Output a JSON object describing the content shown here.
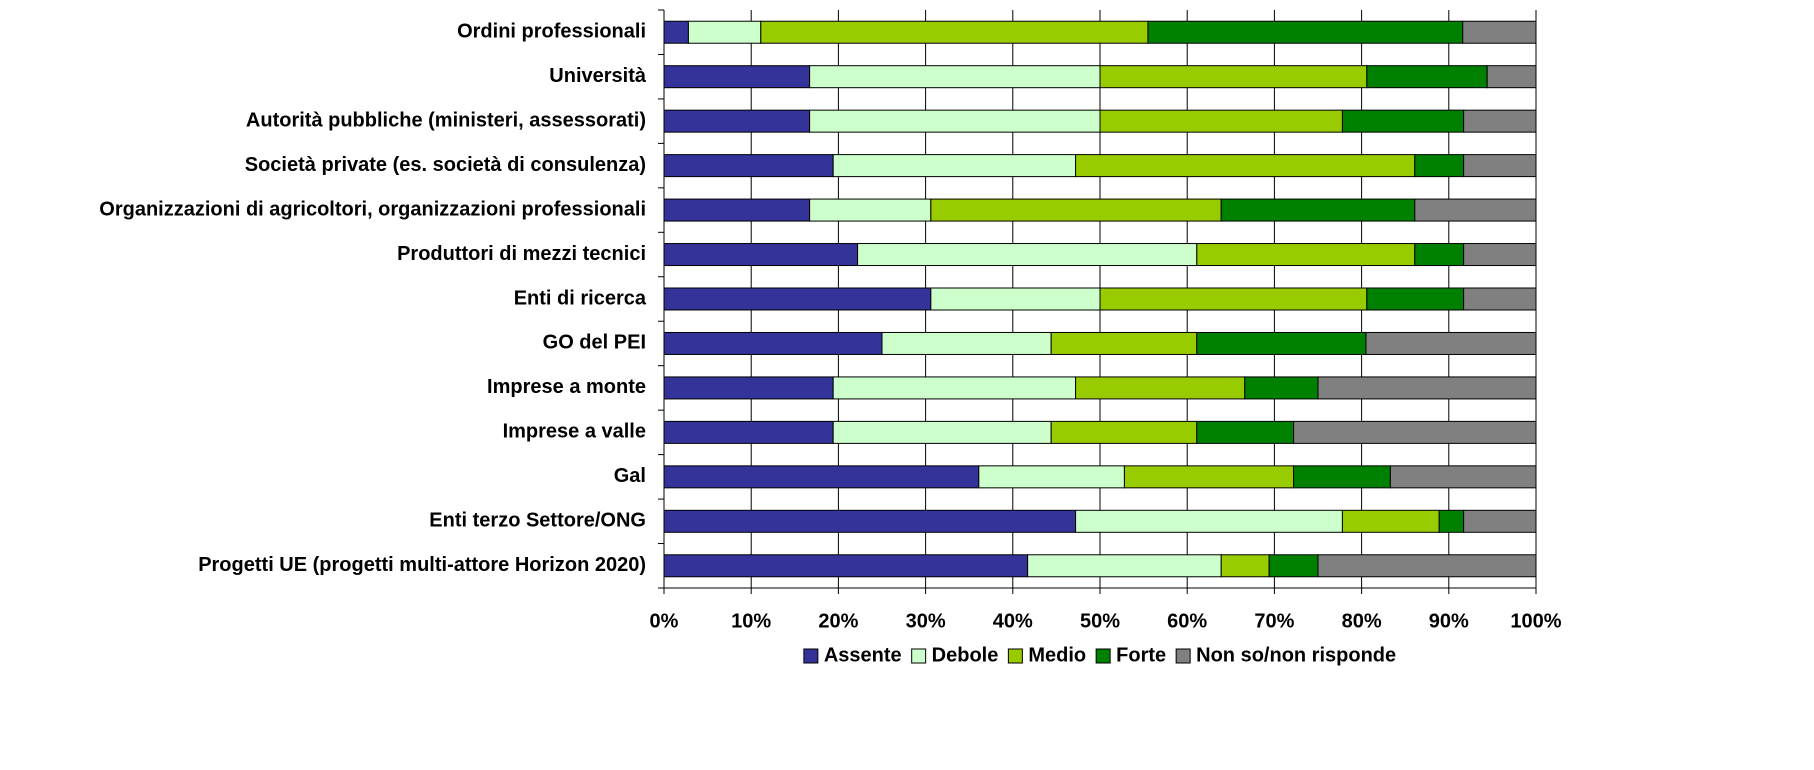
{
  "chart_data": {
    "type": "stacked_barh",
    "categories": [
      "Ordini professionali",
      "Università",
      "Autorità pubbliche (ministeri, assessorati)",
      "Società private (es. società di consulenza)",
      "Organizzazioni di agricoltori, organizzazioni professionali",
      "Produttori di mezzi tecnici",
      "Enti di ricerca",
      "GO del PEI",
      "Imprese a monte",
      "Imprese a valle",
      "Gal",
      "Enti terzo Settore/ONG",
      "Progetti UE (progetti multi-attore Horizon 2020)"
    ],
    "series": [
      {
        "name": "Assente",
        "color": "#333399",
        "values": [
          2.8,
          16.7,
          16.7,
          19.4,
          16.7,
          22.2,
          30.6,
          25.0,
          19.4,
          19.4,
          36.1,
          47.2,
          41.7
        ]
      },
      {
        "name": "Debole",
        "color": "#ccffcc",
        "values": [
          8.3,
          33.3,
          33.3,
          27.8,
          13.9,
          38.9,
          19.4,
          19.4,
          27.8,
          25.0,
          16.7,
          30.6,
          22.2
        ]
      },
      {
        "name": "Medio",
        "color": "#99cc00",
        "values": [
          44.4,
          30.6,
          27.8,
          38.9,
          33.3,
          25.0,
          30.6,
          16.7,
          19.4,
          16.7,
          19.4,
          11.1,
          5.5
        ]
      },
      {
        "name": "Forte",
        "color": "#008000",
        "values": [
          36.1,
          13.8,
          13.9,
          5.6,
          22.2,
          5.6,
          11.1,
          19.4,
          8.4,
          11.1,
          11.1,
          2.8,
          5.6
        ]
      },
      {
        "name": "Non so/non risponde",
        "color": "#808080",
        "values": [
          8.4,
          5.6,
          8.3,
          8.3,
          13.9,
          8.3,
          8.3,
          19.5,
          25.0,
          27.8,
          16.7,
          8.3,
          25.0
        ]
      }
    ],
    "xlim": [
      0,
      100
    ],
    "xticks": [
      {
        "value": 0,
        "label": "0%"
      },
      {
        "value": 10,
        "label": "10%"
      },
      {
        "value": 20,
        "label": "20%"
      },
      {
        "value": 30,
        "label": "30%"
      },
      {
        "value": 40,
        "label": "40%"
      },
      {
        "value": 50,
        "label": "50%"
      },
      {
        "value": 60,
        "label": "60%"
      },
      {
        "value": 70,
        "label": "70%"
      },
      {
        "value": 80,
        "label": "80%"
      },
      {
        "value": 90,
        "label": "90%"
      },
      {
        "value": 100,
        "label": "100%"
      }
    ],
    "grid": true,
    "legend": "bottom"
  }
}
